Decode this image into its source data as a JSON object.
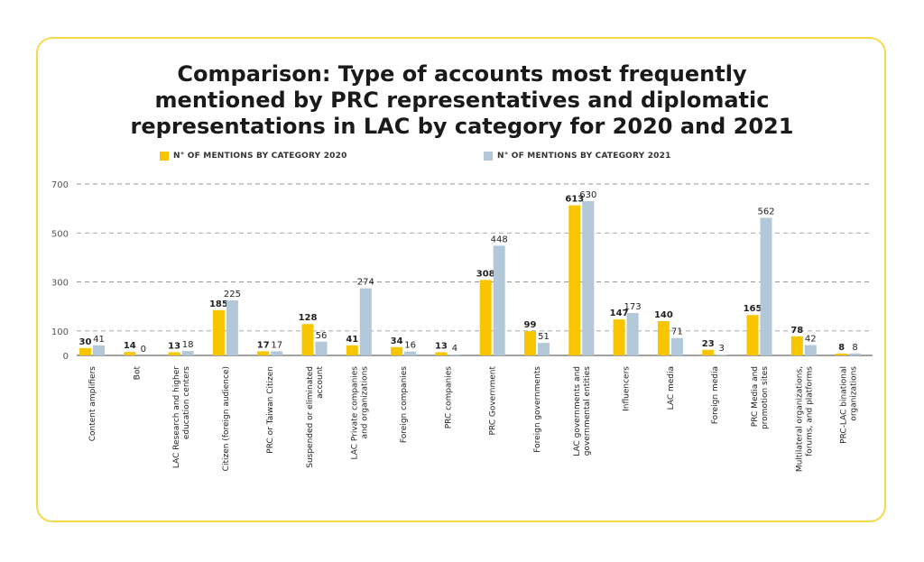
{
  "chart_data": {
    "type": "bar",
    "title_lines": [
      "Comparison: Type of accounts most frequently",
      "mentioned by PRC representatives and diplomatic",
      "representations in LAC by category for 2020 and 2021"
    ],
    "xlabel": "",
    "ylabel": "",
    "yticks": [
      0,
      100,
      300,
      500,
      700
    ],
    "ylim": [
      0,
      700
    ],
    "grid": true,
    "legend_position": "top",
    "categories": [
      [
        "Content amplifiers"
      ],
      [
        "Bot"
      ],
      [
        "LAC Research and higher",
        "education centers"
      ],
      [
        "Citizen (foreign audience)"
      ],
      [
        "PRC or Taiwan Citizen"
      ],
      [
        "Suspended or eliminated",
        "account"
      ],
      [
        "LAC Private companies",
        "and organizations"
      ],
      [
        "Foreign companies"
      ],
      [
        "PRC companies"
      ],
      [
        "PRC Government"
      ],
      [
        "Foreign governments"
      ],
      [
        "LAC governments and",
        "governmental entities"
      ],
      [
        "Influencers"
      ],
      [
        "LAC media"
      ],
      [
        "Foreign media"
      ],
      [
        "PRC Media and",
        "promotion sites"
      ],
      [
        "Multilateral organizations,",
        "forums, and platforms"
      ],
      [
        "PRC-LAC binational",
        "organizations"
      ]
    ],
    "series": [
      {
        "name": "N° OF MENTIONS BY CATEGORY 2020",
        "color": "#f7c600",
        "values": [
          30,
          14,
          13,
          185,
          17,
          128,
          41,
          34,
          13,
          308,
          99,
          613,
          147,
          140,
          23,
          165,
          78,
          8
        ]
      },
      {
        "name": "N° OF MENTIONS BY CATEGORY 2021",
        "color": "#b2c8d8",
        "values": [
          41,
          0,
          18,
          225,
          17,
          56,
          274,
          16,
          4,
          448,
          51,
          630,
          173,
          71,
          3,
          562,
          42,
          8
        ]
      }
    ]
  }
}
